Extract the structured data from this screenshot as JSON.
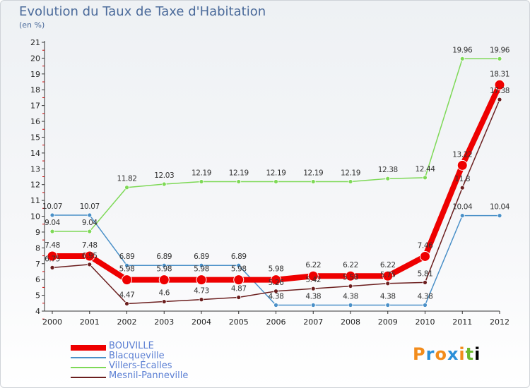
{
  "chart_data": {
    "type": "line",
    "title": "Evolution du Taux de Taxe d'Habitation",
    "subtitle": "(en %)",
    "x": [
      "2000",
      "2001",
      "2002",
      "2003",
      "2004",
      "2005",
      "2006",
      "2007",
      "2008",
      "2009",
      "2010",
      "2011",
      "2012"
    ],
    "ylim": [
      4,
      21
    ],
    "yticks": [
      4,
      5,
      6,
      7,
      8,
      9,
      10,
      11,
      12,
      13,
      14,
      15,
      16,
      17,
      18,
      19,
      20,
      21
    ],
    "grid": false,
    "legend_position": "bottom-left",
    "series": [
      {
        "name": "BOUVILLE",
        "color": "#ee0000",
        "values": [
          7.48,
          7.48,
          5.98,
          5.98,
          5.98,
          5.98,
          5.98,
          6.22,
          6.22,
          6.22,
          7.46,
          13.22,
          18.31
        ],
        "labels": [
          "7.48",
          "7.48",
          "5.98",
          "5.98",
          "5.98",
          "5.98",
          "5.98",
          "6.22",
          "6.22",
          "6.22",
          "7.46",
          "13.22",
          "18.31"
        ]
      },
      {
        "name": "Blacqueville",
        "color": "#4a90c8",
        "values": [
          10.07,
          10.07,
          6.89,
          6.89,
          6.89,
          6.89,
          4.38,
          4.38,
          4.38,
          4.38,
          4.38,
          10.04,
          10.04
        ],
        "labels": [
          "10.07",
          "10.07",
          "6.89",
          "6.89",
          "6.89",
          "6.89",
          "4.38",
          "4.38",
          "4.38",
          "4.38",
          "4.38",
          "10.04",
          "10.04"
        ]
      },
      {
        "name": "Villers-Écalles",
        "color": "#7ed957",
        "values": [
          9.04,
          9.04,
          11.82,
          12.03,
          12.19,
          12.19,
          12.19,
          12.19,
          12.19,
          12.38,
          12.44,
          19.96,
          19.96
        ],
        "labels": [
          "9.04",
          "9.04",
          "11.82",
          "12.03",
          "12.19",
          "12.19",
          "12.19",
          "12.19",
          "12.19",
          "12.38",
          "12.44",
          "19.96",
          "19.96"
        ]
      },
      {
        "name": "Mesnil-Panneville",
        "color": "#6b1e1e",
        "values": [
          6.75,
          6.95,
          4.47,
          4.6,
          4.73,
          4.87,
          5.26,
          5.42,
          5.58,
          5.75,
          5.81,
          11.8,
          17.38
        ],
        "labels": [
          "6.75",
          "6.95",
          "4.47",
          "4.6",
          "4.73",
          "4.87",
          "5.26",
          "5.42",
          "5.58",
          "5.75",
          "5.81",
          "11.8",
          "17.38"
        ]
      }
    ]
  },
  "brand": {
    "letters": [
      "P",
      "r",
      "o",
      "x",
      "i",
      "t",
      "i"
    ]
  }
}
